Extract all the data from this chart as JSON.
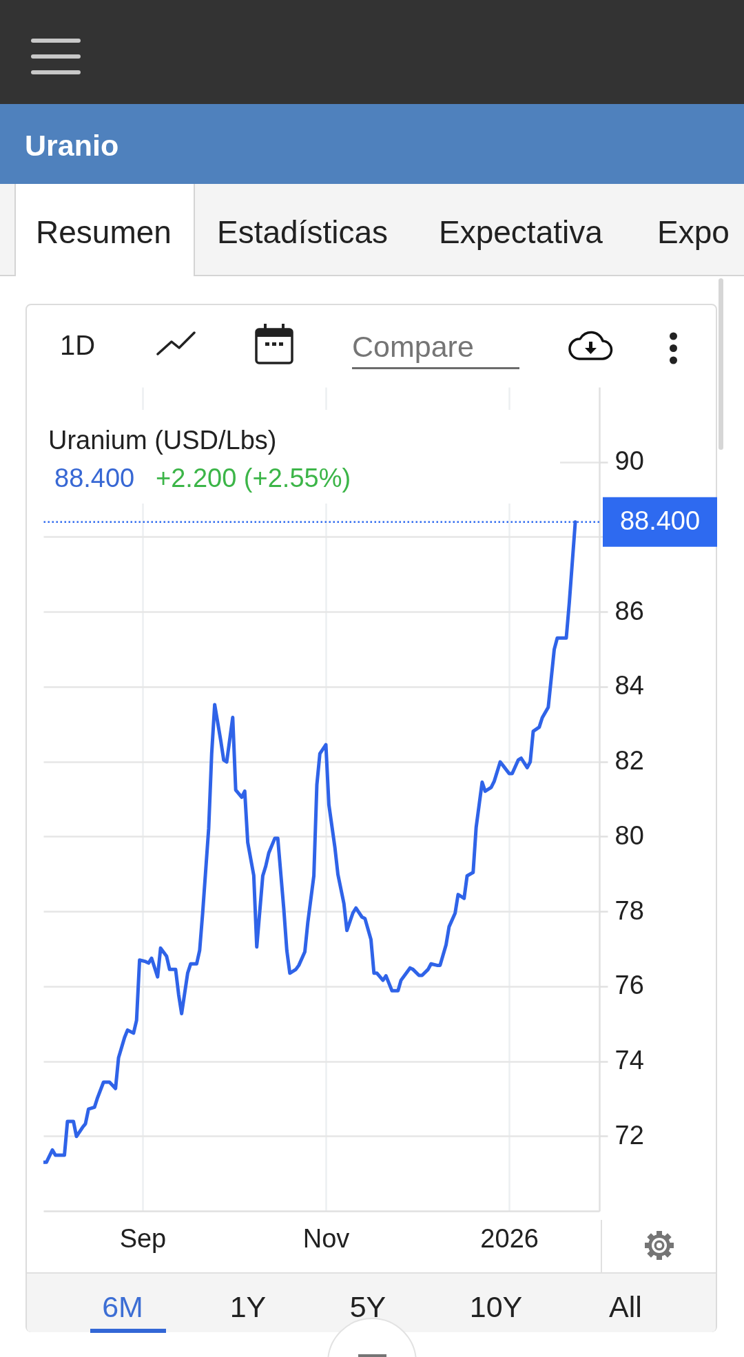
{
  "chart_data": {
    "type": "line",
    "title": "Uranio",
    "subtitle": "Uranium (USD/Lbs)",
    "annotations": [
      "88.400",
      "+2.200 (+2.55%)",
      "Resumen",
      "Estadísticas",
      "Expectativa",
      "Expo",
      "1D",
      "Compare",
      "6M",
      "1Y",
      "5Y",
      "10Y",
      "All"
    ],
    "x": [
      "2025-07-30",
      "2025-07-31",
      "2025-08-02",
      "2025-08-03",
      "2025-08-06",
      "2025-08-07",
      "2025-08-09",
      "2025-08-10",
      "2025-08-12",
      "2025-08-13",
      "2025-08-14",
      "2025-08-16",
      "2025-08-17",
      "2025-08-19",
      "2025-08-21",
      "2025-08-23",
      "2025-08-24",
      "2025-08-26",
      "2025-08-27",
      "2025-08-29",
      "2025-08-30",
      "2025-08-31",
      "2025-09-02",
      "2025-09-03",
      "2025-09-04",
      "2025-09-06",
      "2025-09-07",
      "2025-09-09",
      "2025-09-10",
      "2025-09-12",
      "2025-09-13",
      "2025-09-14",
      "2025-09-16",
      "2025-09-17",
      "2025-09-19",
      "2025-09-20",
      "2025-09-21",
      "2025-09-23",
      "2025-09-24",
      "2025-09-25",
      "2025-09-27",
      "2025-09-28",
      "2025-09-29",
      "2025-10-01",
      "2025-10-02",
      "2025-10-04",
      "2025-10-05",
      "2025-10-06",
      "2025-10-08",
      "2025-10-09",
      "2025-10-11",
      "2025-10-12",
      "2025-10-13",
      "2025-10-15",
      "2025-10-16",
      "2025-10-18",
      "2025-10-19",
      "2025-10-20",
      "2025-10-22",
      "2025-10-23",
      "2025-10-25",
      "2025-10-26",
      "2025-10-28",
      "2025-10-29",
      "2025-10-30",
      "2025-11-01",
      "2025-11-02",
      "2025-11-04",
      "2025-11-05",
      "2025-11-07",
      "2025-11-08",
      "2025-11-10",
      "2025-11-11",
      "2025-11-13",
      "2025-11-14",
      "2025-11-16",
      "2025-11-17",
      "2025-11-18",
      "2025-11-20",
      "2025-11-21",
      "2025-11-23",
      "2025-11-25",
      "2025-11-26",
      "2025-11-28",
      "2025-11-29",
      "2025-11-30",
      "2025-12-02",
      "2025-12-03",
      "2025-12-05",
      "2025-12-06",
      "2025-12-08",
      "2025-12-09",
      "2025-12-11",
      "2025-12-12",
      "2025-12-14",
      "2025-12-15",
      "2025-12-17",
      "2025-12-18",
      "2025-12-20",
      "2025-12-21",
      "2025-12-23",
      "2025-12-24",
      "2025-12-26",
      "2025-12-27",
      "2025-12-29",
      "2025-12-30",
      "2026-01-01",
      "2026-01-02",
      "2026-01-04",
      "2026-01-05",
      "2026-01-07",
      "2026-01-08",
      "2026-01-09",
      "2026-01-11",
      "2026-01-12",
      "2026-01-14",
      "2026-01-16",
      "2026-01-17",
      "2026-01-20",
      "2026-01-21",
      "2026-01-23"
    ],
    "series": [
      {
        "color": "#2f63e8",
        "values": [
          71.3,
          71.3,
          71.63,
          71.49,
          71.49,
          72.39,
          72.39,
          71.99,
          72.23,
          72.33,
          72.72,
          72.77,
          73.02,
          73.44,
          73.44,
          73.27,
          74.09,
          74.63,
          74.83,
          74.75,
          75.09,
          76.7,
          76.66,
          76.62,
          76.75,
          76.25,
          77.02,
          76.8,
          76.45,
          76.45,
          75.78,
          75.27,
          76.35,
          76.6,
          76.6,
          76.96,
          77.96,
          80.21,
          82.21,
          83.52,
          82.57,
          82.04,
          81.99,
          83.18,
          81.24,
          81.05,
          81.21,
          79.84,
          78.96,
          77.05,
          78.95,
          79.21,
          79.56,
          79.95,
          79.95,
          78.06,
          76.96,
          76.35,
          76.45,
          76.56,
          76.92,
          77.71,
          78.95,
          81.38,
          82.21,
          82.45,
          80.85,
          79.71,
          78.99,
          78.21,
          77.49,
          77.96,
          78.09,
          77.85,
          77.81,
          77.25,
          76.35,
          76.35,
          76.16,
          76.28,
          75.88,
          75.88,
          76.16,
          76.38,
          76.49,
          76.45,
          76.29,
          76.29,
          76.45,
          76.6,
          76.56,
          76.56,
          77.11,
          77.59,
          77.95,
          78.45,
          78.35,
          78.95,
          79.04,
          80.24,
          81.45,
          81.21,
          81.31,
          81.47,
          81.99,
          81.89,
          81.68,
          81.68,
          82.04,
          82.09,
          81.84,
          81.99,
          82.81,
          82.92,
          83.17,
          83.45,
          85.0,
          85.3,
          85.3,
          86.24,
          88.4
        ]
      }
    ],
    "xlim": [
      "2025-07-30",
      "2026-01-31"
    ],
    "xticks": [
      {
        "value": "2025-09-01",
        "label": "Sep"
      },
      {
        "value": "2025-11-01",
        "label": "Nov"
      },
      {
        "value": "2026-01-01",
        "label": "2026"
      }
    ],
    "ylim": [
      70,
      92
    ],
    "yticks": [
      72,
      74,
      76,
      78,
      80,
      82,
      84,
      86,
      {
        "value": 88,
        "label": null
      },
      90
    ],
    "grid": true,
    "ref_lines": [
      {
        "axis": "y",
        "value": 88.4,
        "label": "88.400",
        "color": "#2e6af0",
        "line_style": "dotted"
      }
    ]
  }
}
